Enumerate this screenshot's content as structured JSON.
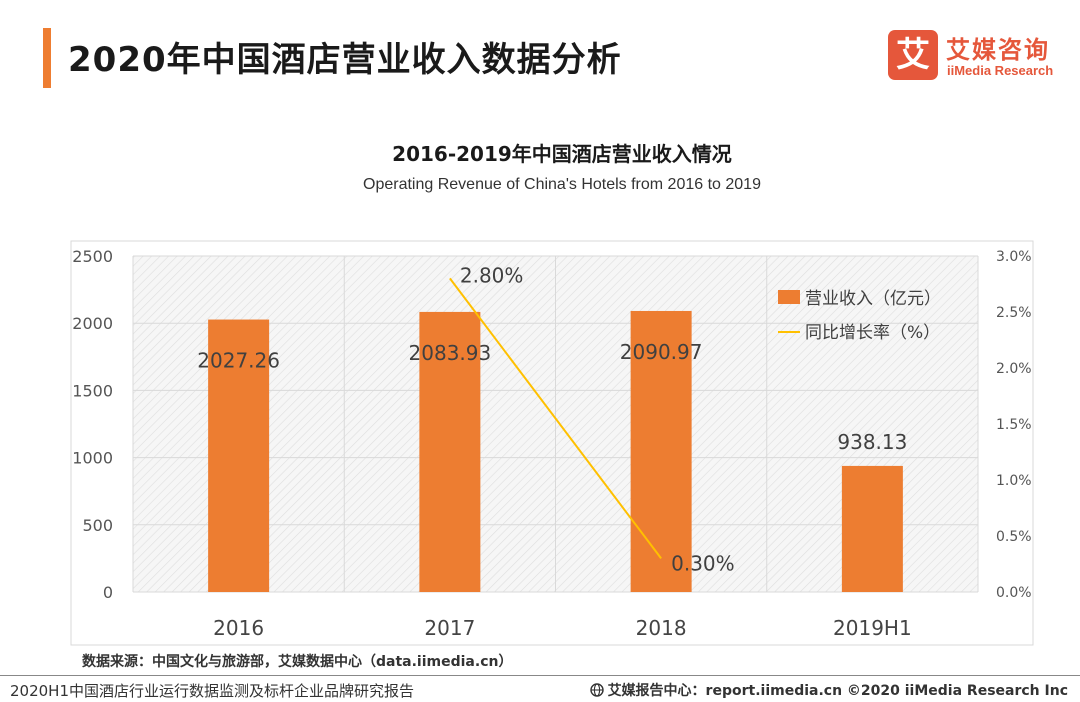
{
  "header": {
    "title": "2020年中国酒店营业收入数据分析",
    "accent_color": "#ee7d31"
  },
  "logo": {
    "mark": "艾",
    "cn": "艾媒咨询",
    "en": "iiMedia Research",
    "color": "#e5573b"
  },
  "chart_data": {
    "type": "bar+line",
    "title": "2016-2019年中国酒店营业收入情况",
    "subtitle": "Operating Revenue of China's Hotels from 2016 to 2019",
    "categories": [
      "2016",
      "2017",
      "2018",
      "2019H1"
    ],
    "series": [
      {
        "name": "营业收入（亿元）",
        "type": "bar",
        "axis": "left",
        "color": "#ed7d31",
        "values": [
          2027.26,
          2083.93,
          2090.97,
          938.13
        ],
        "labels": [
          "2027.26",
          "2083.93",
          "2090.97",
          "938.13"
        ]
      },
      {
        "name": "同比增长率（%）",
        "type": "line",
        "axis": "right",
        "color": "#ffc000",
        "values": [
          null,
          2.8,
          0.3,
          null
        ],
        "labels": [
          "",
          "2.80%",
          "0.30%",
          ""
        ]
      }
    ],
    "y_left": {
      "min": 0,
      "max": 2500,
      "ticks": [
        "0",
        "500",
        "1000",
        "1500",
        "2000",
        "2500"
      ]
    },
    "y_right": {
      "min": 0,
      "max": 3.0,
      "ticks": [
        "0.0%",
        "0.5%",
        "1.0%",
        "1.5%",
        "2.0%",
        "2.5%",
        "3.0%"
      ]
    },
    "grid": true,
    "legend_position": "top-right"
  },
  "source": "数据来源：中国文化与旅游部，艾媒数据中心（data.iimedia.cn）",
  "footer": {
    "left": "2020H1中国酒店行业运行数据监测及标杆企业品牌研究报告",
    "right": "艾媒报告中心：report.iimedia.cn  ©2020  iiMedia Research  Inc"
  }
}
